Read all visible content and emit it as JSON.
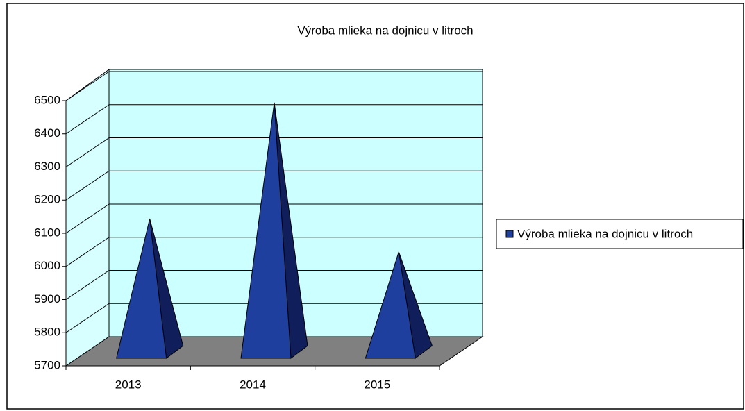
{
  "chart_data": {
    "type": "pyramid3d",
    "title": "Výroba mlieka na dojnicu v litroch",
    "categories": [
      "2013",
      "2014",
      "2015"
    ],
    "series": [
      {
        "name": "Výroba mlieka na dojnicu v litroch",
        "color": "#1f3f9f",
        "values": [
          6100,
          6450,
          6000
        ]
      }
    ],
    "ylim": [
      5700,
      6500
    ],
    "yticks": [
      5700,
      5800,
      5900,
      6000,
      6100,
      6200,
      6300,
      6400,
      6500
    ],
    "grid": true,
    "legend": "right"
  }
}
